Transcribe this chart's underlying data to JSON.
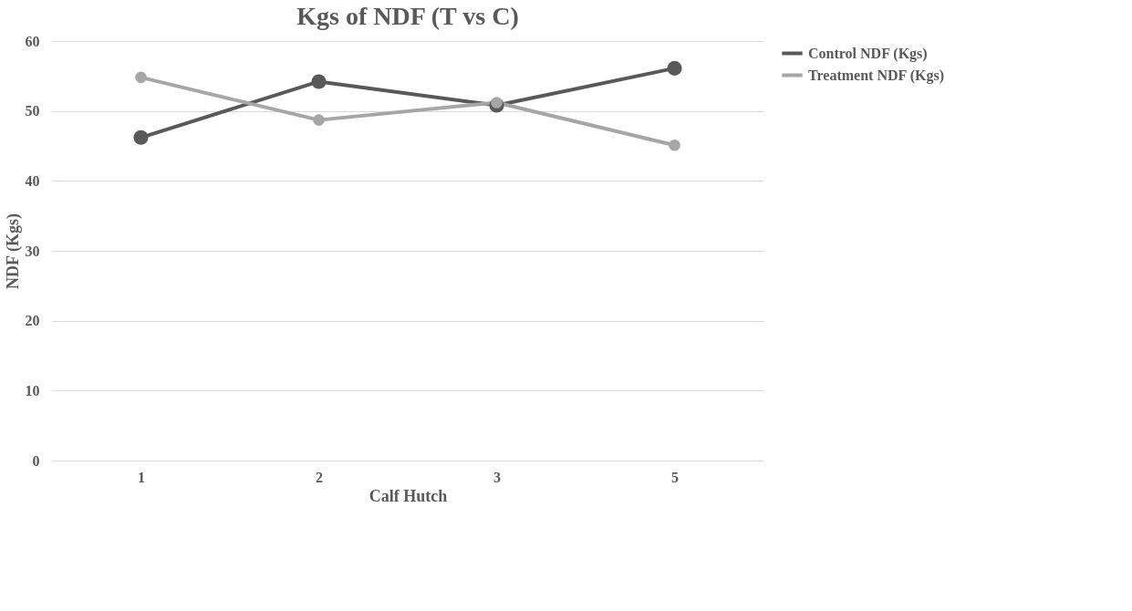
{
  "chart_data": {
    "type": "line",
    "title": "Kgs of NDF (T vs C)",
    "xlabel": "Calf Hutch",
    "ylabel": "NDF (Kgs)",
    "categories": [
      "1",
      "2",
      "3",
      "5"
    ],
    "series": [
      {
        "name": "Control NDF (Kgs)",
        "color": "#595959",
        "values": [
          46.2,
          54.2,
          50.8,
          56.1
        ]
      },
      {
        "name": "Treatment NDF (Kgs)",
        "color": "#a6a6a6",
        "values": [
          54.8,
          48.7,
          51.2,
          45.1
        ]
      }
    ],
    "ylim": [
      0,
      60
    ],
    "yticks": [
      0,
      10,
      20,
      30,
      40,
      50,
      60
    ],
    "grid": "y",
    "legend": "right",
    "marker": "circle",
    "line_style": "solid"
  }
}
